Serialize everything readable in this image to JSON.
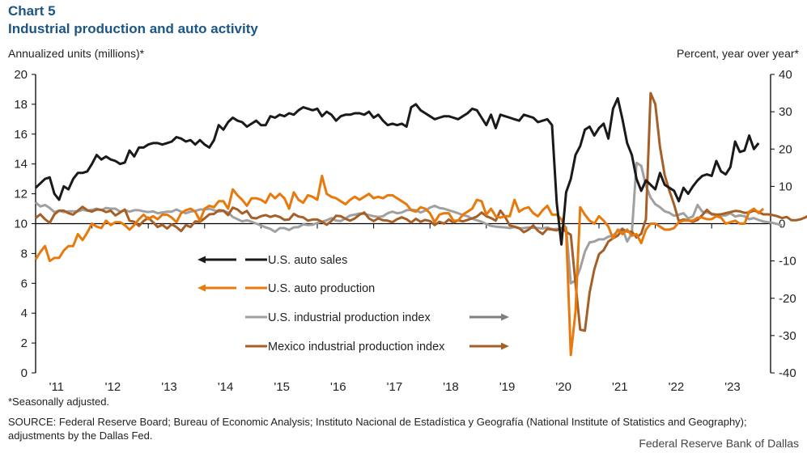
{
  "header": {
    "chart_number": "Chart 5",
    "title": "Industrial production and auto activity",
    "left_axis_label": "Annualized units (millions)*",
    "right_axis_label": "Percent, year over year*"
  },
  "footer": {
    "note": "*Seasonally adjusted.",
    "source": "SOURCE: Federal Reserve Board; Bureau of Economic Analysis; Instituto Nacional de Estadística y Geografía (National Institute of Statistics and Geography); adjustments by the Dallas Fed.",
    "brand": "Federal Reserve Bank of Dallas"
  },
  "chart_data": {
    "type": "line",
    "title": "Industrial production and auto activity",
    "xlabel": "",
    "ylabel": "Annualized units (millions)*",
    "y2label": "Percent, year over year*",
    "ylim": [
      0,
      20
    ],
    "y2lim": [
      -40,
      40
    ],
    "yticks": [
      "0",
      "2",
      "4",
      "6",
      "8",
      "10",
      "12",
      "14",
      "16",
      "18",
      "20"
    ],
    "y2ticks": [
      "-40",
      "-30",
      "-20",
      "-10",
      "0",
      "10",
      "20",
      "30",
      "40"
    ],
    "xticks": [
      "'11",
      "'12",
      "'13",
      "'14",
      "'15",
      "'16",
      "'17",
      "'18",
      "'19",
      "'20",
      "'21",
      "'22",
      "'23"
    ],
    "x_start": "2011-01",
    "frequency": "monthly",
    "grid": false,
    "legend_position": "center-left",
    "colors": {
      "us_auto_sales": "#1a1a1a",
      "us_auto_production": "#e8790c",
      "us_ip": "#a0a0a0",
      "mexico_ip": "#a65f26"
    },
    "series": [
      {
        "name": "U.S. auto sales",
        "axis": "left",
        "arrow": "left",
        "values": [
          12.4,
          12.7,
          13.0,
          13.1,
          12.0,
          11.6,
          12.5,
          12.3,
          13.0,
          13.4,
          13.4,
          13.5,
          14.0,
          14.6,
          14.3,
          14.5,
          14.3,
          14.2,
          14.0,
          14.1,
          14.9,
          14.5,
          15.1,
          15.1,
          15.3,
          15.4,
          15.4,
          15.3,
          15.4,
          15.5,
          15.8,
          15.7,
          15.5,
          15.6,
          15.3,
          15.6,
          15.3,
          15.1,
          15.6,
          16.6,
          16.3,
          16.8,
          17.1,
          16.9,
          16.8,
          16.5,
          16.7,
          16.9,
          16.6,
          16.6,
          17.2,
          17.1,
          17.3,
          17.2,
          17.4,
          17.3,
          17.6,
          17.8,
          17.7,
          17.6,
          17.7,
          17.2,
          17.5,
          17.3,
          16.9,
          17.2,
          17.3,
          17.3,
          17.4,
          17.4,
          17.3,
          17.5,
          17.1,
          17.3,
          16.9,
          16.6,
          16.7,
          16.6,
          16.7,
          16.5,
          17.8,
          18.0,
          17.6,
          17.4,
          17.2,
          17.0,
          17.1,
          17.2,
          17.2,
          17.1,
          17.0,
          17.2,
          17.4,
          17.7,
          17.6,
          17.1,
          16.6,
          17.3,
          16.4,
          17.3,
          17.2,
          17.1,
          17.0,
          16.9,
          17.3,
          17.2,
          17.1,
          16.8,
          16.9,
          17.0,
          16.6,
          11.4,
          8.6,
          12.1,
          13.0,
          14.6,
          15.2,
          16.3,
          16.5,
          15.9,
          16.4,
          16.7,
          15.7,
          17.7,
          18.4,
          17.0,
          15.4,
          14.6,
          13.0,
          12.2,
          12.9,
          12.6,
          12.3,
          13.4,
          12.6,
          12.4,
          12.2,
          11.5,
          12.4,
          12.0,
          12.5,
          12.9,
          13.2,
          13.3,
          13.2,
          14.2,
          13.5,
          13.3,
          13.8,
          15.5,
          14.8,
          14.9,
          15.9,
          15.0,
          15.4
        ]
      },
      {
        "name": "U.S. auto production",
        "axis": "left",
        "arrow": "left",
        "values": [
          7.6,
          8.1,
          8.5,
          7.5,
          7.7,
          7.7,
          8.2,
          8.5,
          8.5,
          9.3,
          8.9,
          9.4,
          10.0,
          9.8,
          9.7,
          10.2,
          9.9,
          10.1,
          10.1,
          9.9,
          9.6,
          9.9,
          10.3,
          10.6,
          10.3,
          10.5,
          10.3,
          10.6,
          10.6,
          10.4,
          10.1,
          10.7,
          10.9,
          11.0,
          10.8,
          10.2,
          11.0,
          11.2,
          11.1,
          11.5,
          11.5,
          11.0,
          12.3,
          11.9,
          11.6,
          11.2,
          11.7,
          11.7,
          11.6,
          11.4,
          12.0,
          11.7,
          12.0,
          11.7,
          11.0,
          12.1,
          11.6,
          11.4,
          11.9,
          11.8,
          11.6,
          13.2,
          12.0,
          11.8,
          11.7,
          11.5,
          11.3,
          11.6,
          11.8,
          11.6,
          11.8,
          12.0,
          11.7,
          11.8,
          11.7,
          11.9,
          11.9,
          11.7,
          11.5,
          11.3,
          10.9,
          10.8,
          11.1,
          11.0,
          10.7,
          10.1,
          10.6,
          10.7,
          10.7,
          10.2,
          10.2,
          10.6,
          10.8,
          11.0,
          11.6,
          11.5,
          10.6,
          11.0,
          10.5,
          10.4,
          10.5,
          10.5,
          11.6,
          10.8,
          11.0,
          11.1,
          10.7,
          10.5,
          10.9,
          11.2,
          10.6,
          10.6,
          10.3,
          9.6,
          1.2,
          4.1,
          11.1,
          10.6,
          10.2,
          10.0,
          10.5,
          10.2,
          9.8,
          9.0,
          9.6,
          9.3,
          9.6,
          9.2,
          9.3,
          8.7,
          9.6,
          10.0,
          10.0,
          9.8,
          9.6,
          9.6,
          9.7,
          10.1,
          10.2,
          10.2,
          10.2,
          10.4,
          10.4,
          10.3,
          10.3,
          10.5,
          10.4,
          10.0,
          10.1,
          10.2,
          10.0,
          10.0,
          10.8,
          11.0,
          10.7,
          11.0
        ]
      },
      {
        "name": "U.S. industrial production index",
        "axis": "right",
        "arrow": "right",
        "values": [
          5.7,
          4.6,
          5.0,
          4.2,
          3.1,
          3.5,
          3.1,
          3.3,
          3.3,
          3.3,
          3.7,
          3.5,
          3.7,
          4.0,
          3.6,
          4.2,
          4.0,
          4.0,
          3.2,
          3.6,
          3.2,
          3.6,
          3.6,
          3.3,
          3.1,
          3.3,
          2.8,
          3.0,
          3.2,
          3.2,
          3.8,
          3.2,
          2.8,
          3.2,
          3.4,
          3.8,
          3.8,
          4.0,
          3.6,
          3.2,
          3.4,
          3.0,
          1.8,
          1.2,
          0.6,
          0.9,
          0.5,
          0.0,
          -0.5,
          -1.0,
          -1.4,
          -2.2,
          -1.2,
          -1.2,
          -1.7,
          -1.0,
          -0.9,
          -0.2,
          -0.4,
          -0.3,
          0.2,
          0.5,
          0.9,
          1.5,
          0.8,
          0.7,
          1.4,
          2.2,
          2.4,
          2.7,
          2.6,
          2.3,
          2.0,
          1.8,
          2.0,
          2.8,
          3.2,
          2.8,
          3.0,
          3.6,
          3.7,
          3.6,
          3.0,
          3.5,
          4.3,
          4.8,
          4.2,
          4.0,
          3.6,
          3.2,
          2.8,
          2.3,
          2.0,
          1.3,
          0.9,
          0.5,
          -0.1,
          -0.6,
          -0.8,
          -0.9,
          -1.0,
          -1.2,
          -0.9,
          -1.3,
          -1.2,
          -1.0,
          -1.1,
          -1.2,
          -1.3,
          -1.0,
          -1.5,
          -1.4,
          -1.6,
          -1.0,
          -16.0,
          -15.2,
          -12.0,
          -7.5,
          -5.0,
          -4.8,
          -4.2,
          -4.2,
          -3.5,
          -3.2,
          -2.0,
          -1.3,
          -4.8,
          -2.6,
          16.3,
          15.5,
          10.2,
          7.0,
          5.2,
          4.4,
          3.3,
          2.9,
          2.1,
          2.4,
          2.8,
          1.4,
          1.9,
          5.0,
          3.2,
          3.0,
          2.7,
          2.4,
          2.2,
          2.2,
          2.8,
          1.9,
          2.2,
          2.0,
          1.2,
          1.5,
          1.0,
          0.6,
          0.4,
          0.2,
          -0.1,
          -0.5
        ]
      },
      {
        "name": "Mexico industrial production index",
        "axis": "right",
        "arrow": "right",
        "values": [
          1.5,
          2.5,
          1.2,
          0.2,
          2.5,
          3.5,
          3.5,
          2.8,
          2.4,
          3.5,
          4.5,
          3.6,
          3.2,
          3.8,
          3.7,
          3.1,
          3.5,
          2.2,
          3.0,
          3.8,
          0.8,
          0.5,
          -0.6,
          0.7,
          1.6,
          0.4,
          -0.9,
          -0.3,
          -1.3,
          -0.2,
          -0.9,
          -2.0,
          -0.4,
          -0.9,
          0.6,
          0.5,
          1.4,
          2.5,
          2.6,
          3.6,
          3.5,
          2.3,
          4.3,
          3.8,
          2.7,
          3.4,
          1.6,
          1.4,
          2.0,
          2.3,
          1.8,
          2.2,
          1.8,
          1.0,
          1.1,
          2.6,
          1.9,
          1.7,
          0.8,
          1.1,
          1.1,
          0.5,
          -0.3,
          0.7,
          2.1,
          2.0,
          1.3,
          0.8,
          1.4,
          2.4,
          3.0,
          1.4,
          0.7,
          1.4,
          0.9,
          0.8,
          0.4,
          1.2,
          1.7,
          1.2,
          0.3,
          1.3,
          0.5,
          1.0,
          0.7,
          -0.4,
          0.5,
          0.0,
          1.1,
          0.3,
          0.9,
          0.6,
          1.0,
          1.4,
          1.9,
          3.0,
          2.0,
          1.5,
          0.8,
          3.5,
          1.8,
          -0.5,
          -0.8,
          -1.2,
          -2.3,
          -1.6,
          -0.5,
          -1.9,
          -2.8,
          -1.4,
          -1.6,
          -1.8,
          -1.2,
          -2.2,
          -3.0,
          -16.0,
          -28.4,
          -28.7,
          -18.5,
          -12.3,
          -8.2,
          -7.1,
          -4.8,
          -3.9,
          -3.2,
          -1.5,
          -2.1,
          -2.2,
          -3.7,
          -2.7,
          1.2,
          35.0,
          32.0,
          20.5,
          13.0,
          8.8,
          5.1,
          0.7,
          1.1,
          0.9,
          0.5,
          1.0,
          2.3,
          3.7,
          2.5,
          2.4,
          2.5,
          2.8,
          3.1,
          3.4,
          3.3,
          2.9,
          3.0,
          3.5,
          3.1,
          2.5,
          2.5,
          2.3,
          2.0,
          1.5,
          1.8,
          0.9,
          0.9,
          1.2,
          1.7,
          2.5
        ]
      }
    ]
  }
}
